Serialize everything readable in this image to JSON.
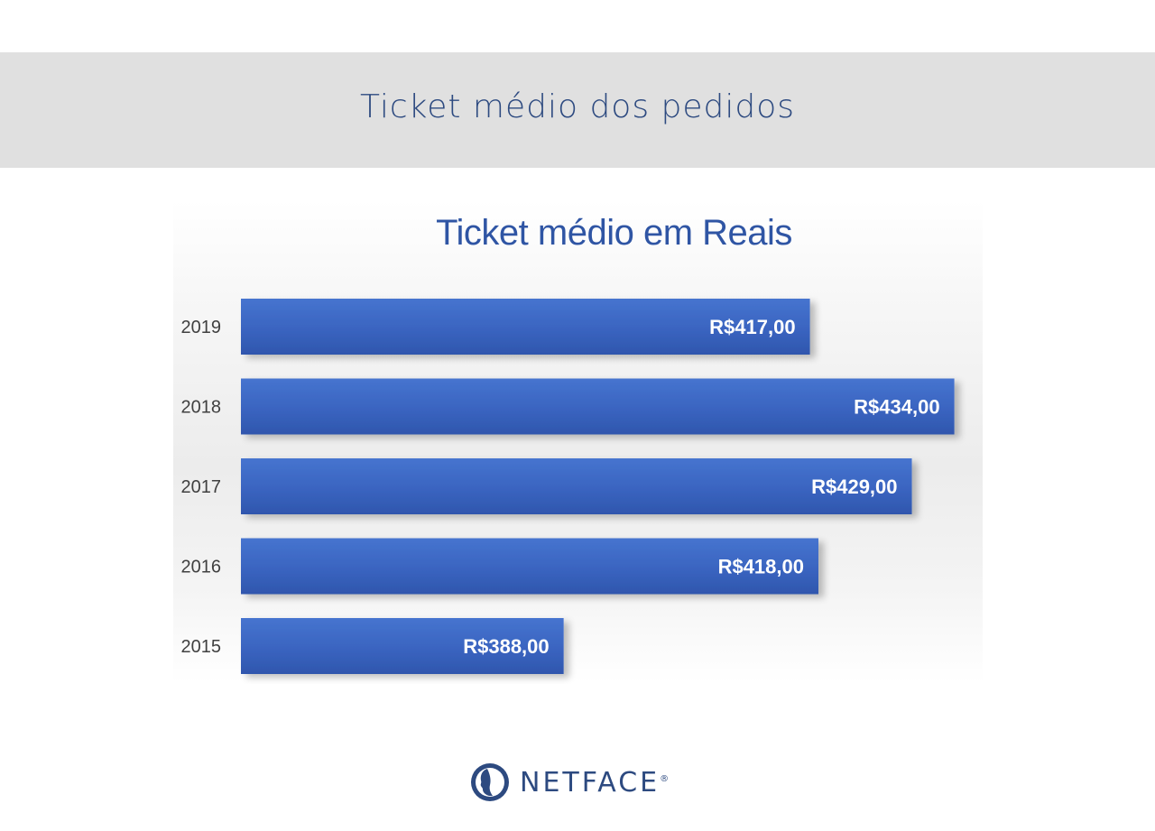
{
  "header": {
    "title": "Ticket médio dos pedidos"
  },
  "chart_data": {
    "type": "bar",
    "orientation": "horizontal",
    "title": "Ticket médio em Reais",
    "categories": [
      "2019",
      "2018",
      "2017",
      "2016",
      "2015"
    ],
    "values": [
      417,
      434,
      429,
      418,
      388
    ],
    "value_labels": [
      "R$417,00",
      "R$434,00",
      "R$429,00",
      "R$418,00",
      "R$388,00"
    ],
    "xlim": [
      350,
      435
    ],
    "grid": false,
    "legend": "none",
    "bar_color": "#3a64c0",
    "label_color": "#ffffff"
  },
  "logo": {
    "text": "NETFACE",
    "mark": "®"
  }
}
